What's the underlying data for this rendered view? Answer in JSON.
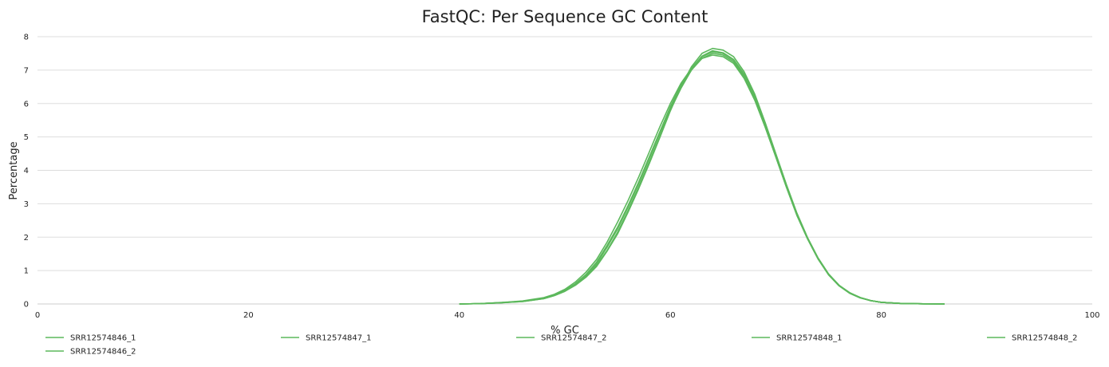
{
  "chart_data": {
    "type": "line",
    "title": "FastQC: Per Sequence GC Content",
    "xlabel": "% GC",
    "ylabel": "Percentage",
    "xlim": [
      0,
      100
    ],
    "ylim": [
      0,
      8
    ],
    "xticks": [
      0,
      20,
      40,
      60,
      80,
      100
    ],
    "yticks": [
      0,
      1,
      2,
      3,
      4,
      5,
      6,
      7,
      8
    ],
    "grid": "horizontal",
    "legend_position": "bottom",
    "line_color": "#5cb85c",
    "x": [
      40,
      42,
      44,
      46,
      48,
      49,
      50,
      51,
      52,
      53,
      54,
      55,
      56,
      57,
      58,
      59,
      60,
      61,
      62,
      63,
      64,
      65,
      66,
      67,
      68,
      69,
      70,
      71,
      72,
      73,
      74,
      75,
      76,
      77,
      78,
      79,
      80,
      82,
      84,
      86
    ],
    "series": [
      {
        "name": "SRR12574846_1",
        "values": [
          0,
          0.01,
          0.04,
          0.08,
          0.17,
          0.26,
          0.4,
          0.6,
          0.85,
          1.2,
          1.7,
          2.25,
          2.9,
          3.6,
          4.35,
          5.1,
          5.85,
          6.5,
          7.0,
          7.35,
          7.5,
          7.45,
          7.25,
          6.8,
          6.15,
          5.3,
          4.4,
          3.5,
          2.65,
          1.95,
          1.35,
          0.88,
          0.55,
          0.33,
          0.19,
          0.1,
          0.05,
          0.015,
          0.004,
          0
        ]
      },
      {
        "name": "SRR12574846_2",
        "values": [
          0,
          0.01,
          0.035,
          0.075,
          0.16,
          0.25,
          0.38,
          0.57,
          0.82,
          1.15,
          1.6,
          2.15,
          2.8,
          3.5,
          4.25,
          5.0,
          5.8,
          6.45,
          7.0,
          7.4,
          7.55,
          7.5,
          7.3,
          6.85,
          6.2,
          5.35,
          4.45,
          3.55,
          2.7,
          1.98,
          1.37,
          0.89,
          0.56,
          0.34,
          0.19,
          0.1,
          0.05,
          0.015,
          0.004,
          0
        ]
      },
      {
        "name": "SRR12574847_1",
        "values": [
          0,
          0.01,
          0.04,
          0.08,
          0.17,
          0.27,
          0.41,
          0.61,
          0.88,
          1.25,
          1.75,
          2.3,
          2.95,
          3.65,
          4.4,
          5.15,
          5.9,
          6.55,
          7.05,
          7.4,
          7.55,
          7.5,
          7.3,
          6.85,
          6.2,
          5.35,
          4.45,
          3.55,
          2.7,
          1.97,
          1.36,
          0.88,
          0.55,
          0.33,
          0.19,
          0.1,
          0.05,
          0.015,
          0.004,
          0
        ]
      },
      {
        "name": "SRR12574847_2",
        "values": [
          0,
          0.01,
          0.035,
          0.075,
          0.16,
          0.25,
          0.38,
          0.56,
          0.8,
          1.12,
          1.58,
          2.1,
          2.75,
          3.45,
          4.2,
          4.98,
          5.78,
          6.5,
          7.1,
          7.5,
          7.65,
          7.6,
          7.4,
          6.95,
          6.28,
          5.42,
          4.5,
          3.58,
          2.72,
          1.99,
          1.38,
          0.9,
          0.56,
          0.34,
          0.19,
          0.1,
          0.05,
          0.015,
          0.004,
          0
        ]
      },
      {
        "name": "SRR12574848_1",
        "values": [
          0,
          0.012,
          0.045,
          0.09,
          0.19,
          0.29,
          0.44,
          0.66,
          0.95,
          1.33,
          1.85,
          2.45,
          3.1,
          3.8,
          4.55,
          5.3,
          6.0,
          6.6,
          7.05,
          7.35,
          7.45,
          7.4,
          7.2,
          6.75,
          6.1,
          5.28,
          4.4,
          3.5,
          2.66,
          1.95,
          1.35,
          0.87,
          0.54,
          0.32,
          0.18,
          0.1,
          0.05,
          0.015,
          0.004,
          0
        ]
      },
      {
        "name": "SRR12574848_2",
        "values": [
          0,
          0.01,
          0.04,
          0.08,
          0.17,
          0.27,
          0.4,
          0.6,
          0.87,
          1.22,
          1.7,
          2.28,
          2.92,
          3.62,
          4.38,
          5.12,
          5.88,
          6.52,
          7.05,
          7.42,
          7.58,
          7.52,
          7.32,
          6.88,
          6.22,
          5.37,
          4.47,
          3.57,
          2.71,
          1.98,
          1.37,
          0.89,
          0.56,
          0.33,
          0.19,
          0.1,
          0.05,
          0.015,
          0.004,
          0
        ]
      }
    ]
  }
}
